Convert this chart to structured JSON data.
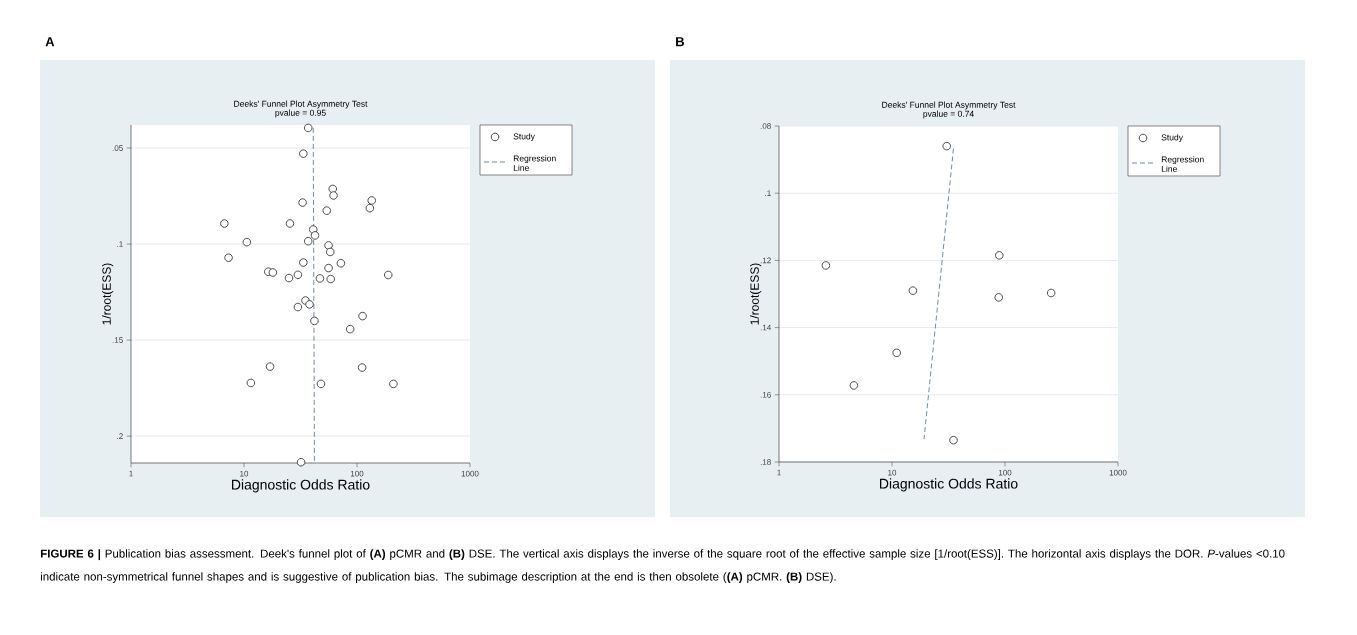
{
  "chart_data": [
    {
      "type": "scatter",
      "title": "Deeks' Funnel Plot Asymmetry Test",
      "subtitle": "pvalue =  0.95",
      "xlabel": "Diagnostic Odds Ratio",
      "ylabel": "1/root(ESS)",
      "annotations": [
        "A",
        "**FIGURE 6 |** Publication bias assessment. Deek's funnel plot of **(A)** pCMR and **(B)** DSE. The vertical axis displays the inverse of the square root of the effective sample size [1/root(ESS)]. The horizontal axis displays the DOR. *P*-values <0.10 indicate non-symmetrical funnel shapes and is suggestive of publication bias. The subimage description at the end is then obsolete (**(A)** pCMR. **(B)** DSE)."
      ],
      "log": "x",
      "xlim": [
        1,
        1000
      ],
      "xticks": [
        1,
        10,
        100,
        1000
      ],
      "ylim": [
        0.214,
        0.038
      ],
      "yticks": [
        {
          "value": 0.05,
          "label": ".05"
        },
        {
          "value": 0.1,
          "label": ".1"
        },
        {
          "value": 0.15,
          "label": ".15"
        },
        {
          "value": 0.2,
          "label": ".2"
        }
      ],
      "grid": "y",
      "legend": "top right",
      "series": [
        {
          "name": "Study",
          "marker": "circle",
          "color": "#3a3a3a",
          "x": [
            37,
            33.5,
            61,
            62,
            33,
            135,
            130,
            54,
            6.7,
            25.5,
            41,
            42.5,
            10.6,
            37,
            56,
            58,
            7.3,
            33.5,
            72,
            56,
            16.4,
            18,
            30,
            25,
            47,
            58.5,
            189,
            35,
            38,
            30,
            42,
            112,
            87,
            17,
            111,
            11.5,
            48,
            210,
            32
          ],
          "values": [
            0.0395,
            0.0529,
            0.0713,
            0.0747,
            0.0784,
            0.0773,
            0.0813,
            0.0826,
            0.0893,
            0.0893,
            0.0924,
            0.0955,
            0.099,
            0.0985,
            0.1007,
            0.1041,
            0.1071,
            0.1096,
            0.11,
            0.1125,
            0.1144,
            0.1148,
            0.116,
            0.1177,
            0.1179,
            0.1182,
            0.1161,
            0.1294,
            0.1314,
            0.1328,
            0.14,
            0.1375,
            0.1443,
            0.1638,
            0.1643,
            0.1723,
            0.1728,
            0.1728,
            0.2136
          ]
        },
        {
          "name": "Regression Line",
          "type": "line",
          "line_style": "dashed",
          "color": "#4a6d96",
          "x": [
            41,
            42
          ],
          "values": [
            0.0395,
            0.214
          ]
        }
      ]
    },
    {
      "type": "scatter",
      "title": "Deeks' Funnel Plot Asymmetry Test",
      "subtitle": "pvalue =  0.74",
      "xlabel": "Diagnostic Odds Ratio",
      "ylabel": "1/root(ESS)",
      "annotations": [
        "B"
      ],
      "log": "x",
      "xlim": [
        1,
        1000
      ],
      "xticks": [
        1,
        10,
        100,
        1000
      ],
      "ylim": [
        0.18,
        0.08
      ],
      "yticks": [
        {
          "value": 0.08,
          "label": ".08"
        },
        {
          "value": 0.1,
          "label": ".1"
        },
        {
          "value": 0.12,
          "label": ".12"
        },
        {
          "value": 0.14,
          "label": ".14"
        },
        {
          "value": 0.16,
          "label": ".16"
        },
        {
          "value": 0.18,
          "label": ".18"
        }
      ],
      "grid": "y",
      "legend": "top right",
      "series": [
        {
          "name": "Study",
          "marker": "circle",
          "color": "#3a3a3a",
          "x": [
            30.5,
            89,
            2.6,
            15.3,
            88,
            256,
            11,
            4.6,
            35
          ],
          "values": [
            0.086,
            0.1185,
            0.1215,
            0.129,
            0.131,
            0.1297,
            0.1475,
            0.1572,
            0.1735
          ]
        },
        {
          "name": "Regression Line",
          "type": "line",
          "line_style": "dashed",
          "color": "#4a6d96",
          "x": [
            35,
            19.2
          ],
          "values": [
            0.0867,
            0.1732
          ]
        }
      ]
    }
  ]
}
